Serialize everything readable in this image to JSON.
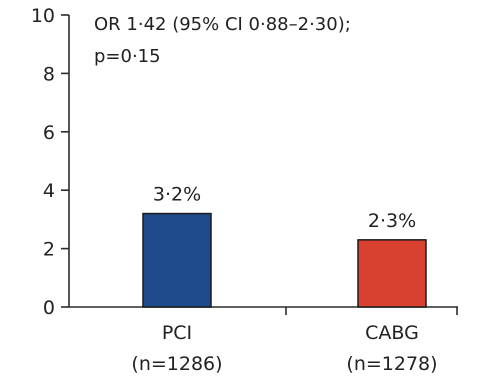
{
  "chart_data": {
    "type": "bar",
    "categories": [
      "PCI",
      "CABG"
    ],
    "category_sublabels": [
      "(n=1286)",
      "(n=1278)"
    ],
    "values": [
      3.2,
      2.3
    ],
    "value_labels": [
      "3·2%",
      "2·3%"
    ],
    "colors": [
      "#1f4a8c",
      "#d8402f"
    ],
    "ylim": [
      0,
      10
    ],
    "yticks": [
      0,
      2,
      4,
      6,
      8,
      10
    ],
    "ytick_labels": [
      "0",
      "2",
      "4",
      "6",
      "8",
      "10"
    ],
    "annotation_lines": [
      "OR 1·42 (95% CI 0·88–2·30);",
      "p=0·15"
    ],
    "grid": false
  }
}
